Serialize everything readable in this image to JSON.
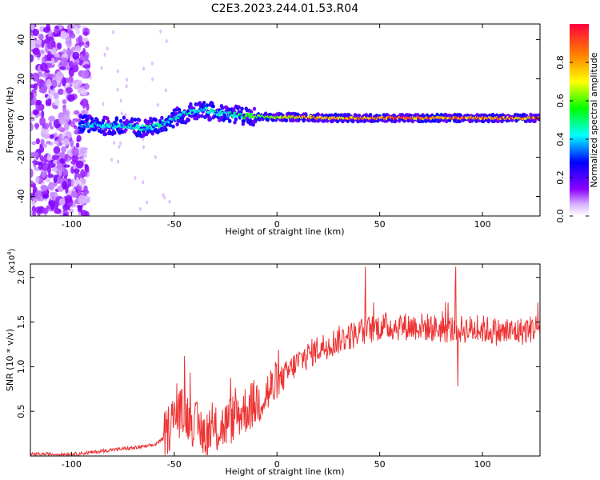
{
  "figure_title": "C2E3.2023.244.01.53.R04",
  "chart_data": [
    {
      "type": "heatmap",
      "title": "C2E3.2023.244.01.53.R04",
      "xlabel": "Height of straight line (km)",
      "ylabel": "Frequency (Hz)",
      "xlim": [
        -120,
        128
      ],
      "ylim": [
        -50,
        48
      ],
      "xticks": [
        -100,
        -50,
        0,
        50,
        100
      ],
      "yticks": [
        -40,
        -20,
        0,
        20,
        40
      ],
      "grid": false,
      "colorbar": {
        "label": "Normalized spectral amplitude",
        "range": [
          0.0,
          1.0
        ],
        "ticks": [
          0.0,
          0.2,
          0.4,
          0.6,
          0.8
        ],
        "colormap": [
          "#ffffff",
          "#d9b3ff",
          "#8b00ff",
          "#0000ff",
          "#00ffff",
          "#00ff00",
          "#ffff00",
          "#ff8000",
          "#ff0000"
        ]
      },
      "ridge": {
        "description_free": true,
        "points": [
          {
            "x": -95,
            "y": -3,
            "amp": 0.35
          },
          {
            "x": -85,
            "y": -4,
            "amp": 0.45
          },
          {
            "x": -75,
            "y": -4,
            "amp": 0.45
          },
          {
            "x": -65,
            "y": -5,
            "amp": 0.45
          },
          {
            "x": -58,
            "y": -4,
            "amp": 0.5
          },
          {
            "x": -50,
            "y": 0,
            "amp": 0.45
          },
          {
            "x": -42,
            "y": 3,
            "amp": 0.45
          },
          {
            "x": -35,
            "y": 4,
            "amp": 0.45
          },
          {
            "x": -25,
            "y": 2,
            "amp": 0.45
          },
          {
            "x": -15,
            "y": 1,
            "amp": 0.55
          },
          {
            "x": 0,
            "y": 0.5,
            "amp": 0.7
          },
          {
            "x": 10,
            "y": 0.5,
            "amp": 0.8
          },
          {
            "x": 25,
            "y": 0,
            "amp": 0.85
          },
          {
            "x": 50,
            "y": 0,
            "amp": 0.9
          },
          {
            "x": 75,
            "y": 0,
            "amp": 0.9
          },
          {
            "x": 100,
            "y": 0,
            "amp": 0.9
          },
          {
            "x": 128,
            "y": 0,
            "amp": 0.9
          }
        ]
      }
    },
    {
      "type": "line",
      "xlabel": "Height of straight line (km)",
      "ylabel": "SNR (10 * v/v)",
      "y_multiplier": "(x10^4)",
      "xlim": [
        -120,
        128
      ],
      "ylim": [
        0,
        2.15
      ],
      "xticks": [
        -100,
        -50,
        0,
        50,
        100
      ],
      "yticks": [
        0.5,
        1.0,
        1.5,
        2.0
      ],
      "grid": false,
      "color": "#ee3333",
      "trend": {
        "x": [
          -120,
          -100,
          -90,
          -80,
          -70,
          -60,
          -55,
          -50,
          -45,
          -40,
          -35,
          -30,
          -25,
          -20,
          -10,
          0,
          10,
          20,
          30,
          40,
          50,
          60,
          70,
          80,
          90,
          100,
          110,
          120,
          128
        ],
        "y": [
          0.02,
          0.02,
          0.04,
          0.07,
          0.09,
          0.12,
          0.2,
          0.45,
          0.5,
          0.35,
          0.25,
          0.28,
          0.35,
          0.45,
          0.6,
          0.8,
          1.05,
          1.2,
          1.3,
          1.38,
          1.45,
          1.45,
          1.45,
          1.42,
          1.42,
          1.42,
          1.38,
          1.4,
          1.45
        ]
      },
      "peaks": [
        {
          "x": -45,
          "y": 1.12
        },
        {
          "x": 43,
          "y": 2.12
        },
        {
          "x": 87,
          "y": 2.12
        },
        {
          "x": 88,
          "y": 0.78
        },
        {
          "x": 127,
          "y": 1.72
        }
      ]
    }
  ]
}
